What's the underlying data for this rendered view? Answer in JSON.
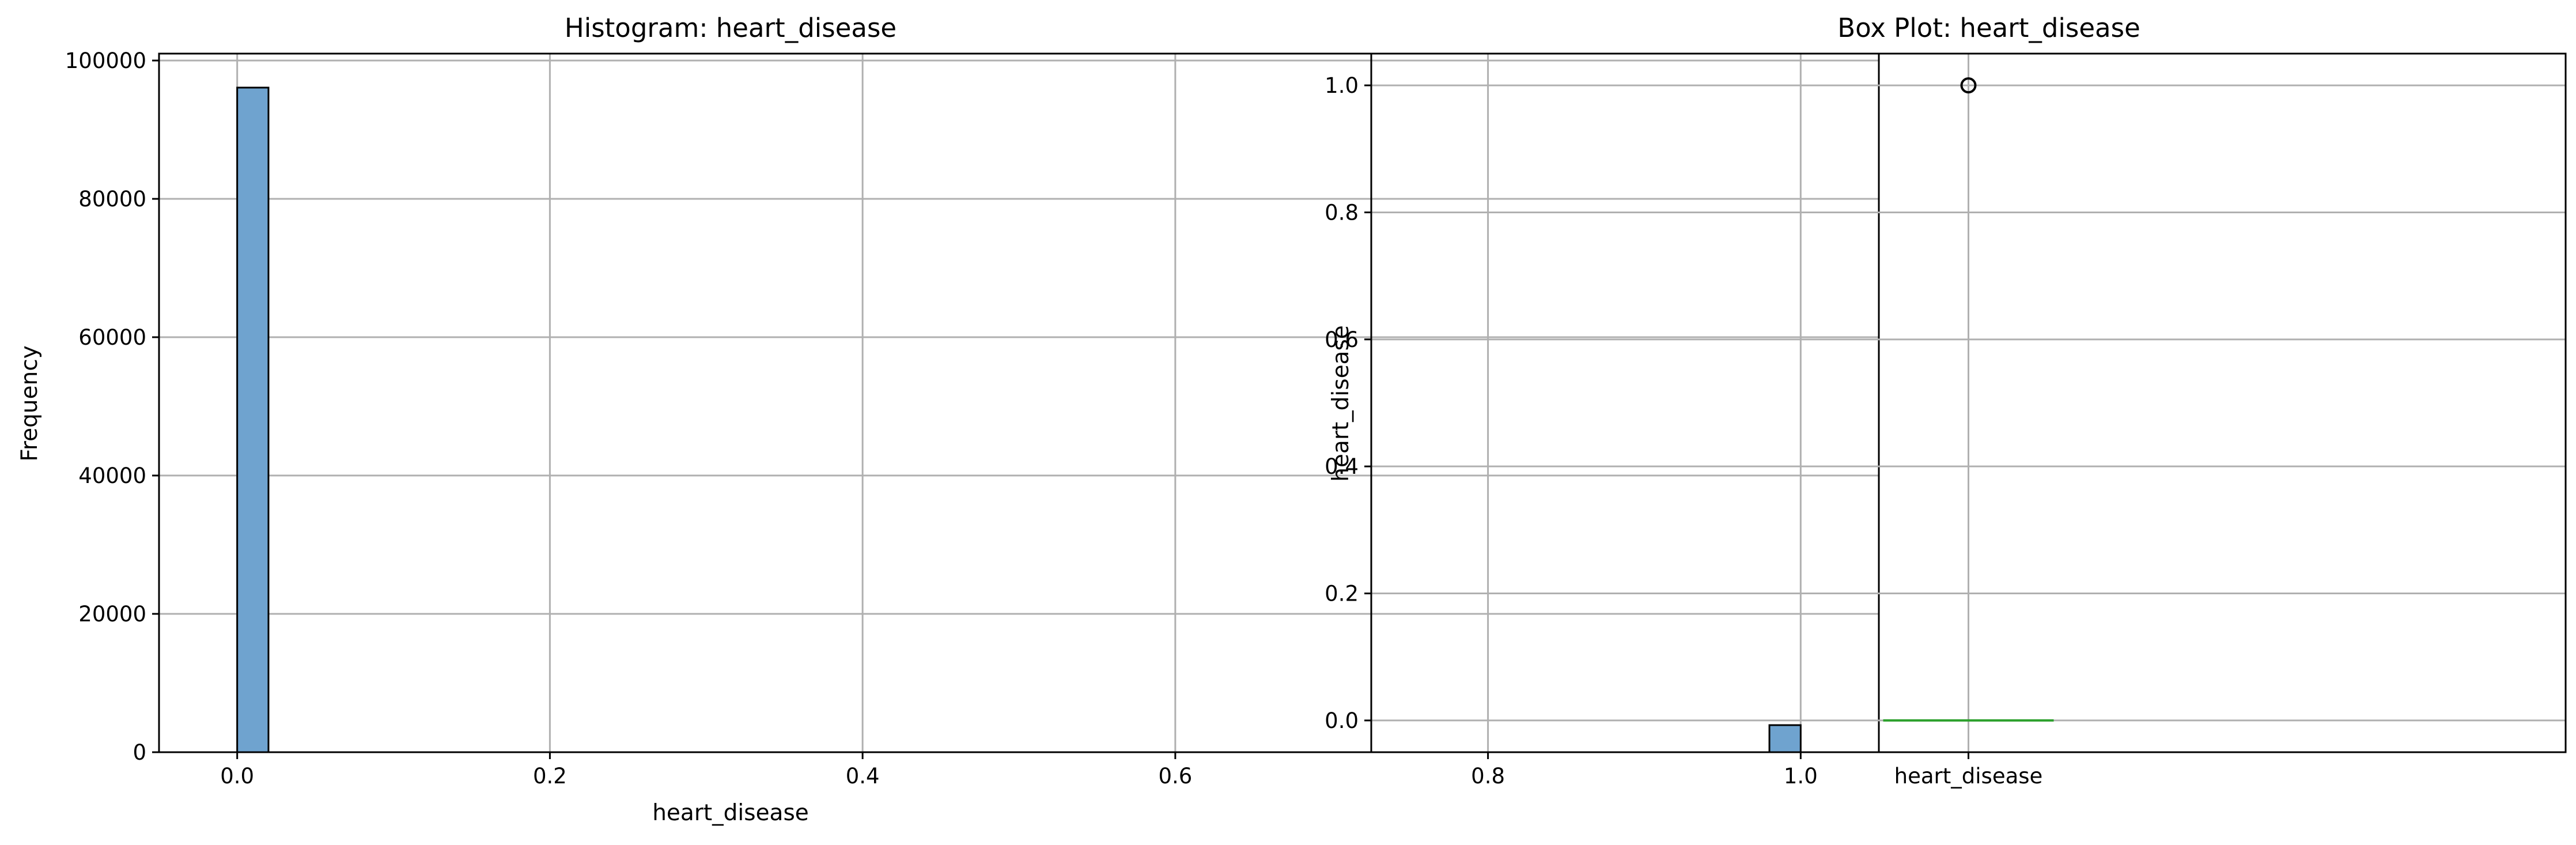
{
  "chart_data": [
    {
      "type": "bar",
      "title": "Histogram: heart_disease",
      "xlabel": "heart_disease",
      "ylabel": "Frequency",
      "xlim": [
        -0.05,
        1.05
      ],
      "ylim": [
        0,
        101000
      ],
      "x_ticks": [
        0.0,
        0.2,
        0.4,
        0.6,
        0.8,
        1.0
      ],
      "x_tick_labels": [
        "0.0",
        "0.2",
        "0.4",
        "0.6",
        "0.8",
        "1.0"
      ],
      "y_ticks": [
        0,
        20000,
        40000,
        60000,
        80000,
        100000
      ],
      "y_tick_labels": [
        "0",
        "20000",
        "40000",
        "60000",
        "80000",
        "100000"
      ],
      "bins": 50,
      "bars": [
        {
          "x_start": 0.0,
          "x_end": 0.02,
          "value": 96085
        },
        {
          "x_start": 0.98,
          "x_end": 1.0,
          "value": 3915
        }
      ],
      "bar_color": "#6fa3cf",
      "grid": true
    },
    {
      "type": "box",
      "title": "Box Plot: heart_disease",
      "ylabel": "heart_disease",
      "category": "heart_disease",
      "ylim": [
        -0.05,
        1.05
      ],
      "y_ticks": [
        0.0,
        0.2,
        0.4,
        0.6,
        0.8,
        1.0
      ],
      "y_tick_labels": [
        "0.0",
        "0.2",
        "0.4",
        "0.6",
        "0.8",
        "1.0"
      ],
      "q1": 0.0,
      "median": 0.0,
      "q3": 0.0,
      "whisker_low": 0.0,
      "whisker_high": 0.0,
      "outliers": [
        1.0
      ],
      "median_color": "#2ca02c",
      "grid": true
    }
  ]
}
